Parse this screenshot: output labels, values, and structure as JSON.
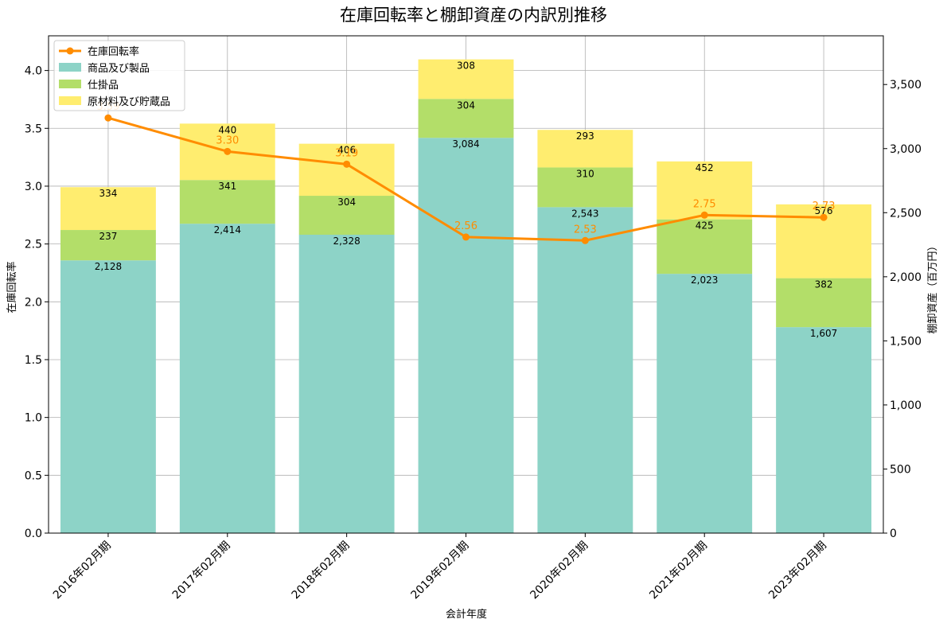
{
  "chart_data": {
    "type": "bar",
    "title": "在庫回転率と棚卸資産の内訳別推移",
    "xlabel": "会計年度",
    "ylabel_left": "在庫回転率",
    "ylabel_right": "棚卸資産（百万円）",
    "categories": [
      "2016年02月期",
      "2017年02月期",
      "2018年02月期",
      "2019年02月期",
      "2020年02月期",
      "2021年02月期",
      "2023年02月期"
    ],
    "stacked_series": [
      {
        "name": "商品及び製品",
        "color": "#8dd3c7",
        "values": [
          2128,
          2414,
          2328,
          3084,
          2543,
          2023,
          1607
        ],
        "labels": [
          "2,128",
          "2,414",
          "2,328",
          "3,084",
          "2,543",
          "2,023",
          "1,607"
        ]
      },
      {
        "name": "仕掛品",
        "color": "#b3de69",
        "values": [
          237,
          341,
          304,
          304,
          310,
          425,
          382
        ],
        "labels": [
          "237",
          "341",
          "304",
          "304",
          "310",
          "425",
          "382"
        ]
      },
      {
        "name": "原材料及び貯蔵品",
        "color": "#ffed6f",
        "values": [
          334,
          440,
          406,
          308,
          293,
          452,
          576
        ],
        "labels": [
          "334",
          "440",
          "406",
          "308",
          "293",
          "452",
          "576"
        ]
      }
    ],
    "line_series": {
      "name": "在庫回転率",
      "color": "#ff8c00",
      "values": [
        3.59,
        3.3,
        3.19,
        2.56,
        2.53,
        2.75,
        2.73
      ],
      "labels": [
        "3.59",
        "3.30",
        "3.19",
        "2.56",
        "2.53",
        "2.75",
        "2.73"
      ]
    },
    "ylim_left": [
      0,
      4.3
    ],
    "yticks_left": [
      "0.0",
      "0.5",
      "1.0",
      "1.5",
      "2.0",
      "2.5",
      "3.0",
      "3.5",
      "4.0"
    ],
    "yticks_left_values": [
      0,
      0.5,
      1.0,
      1.5,
      2.0,
      2.5,
      3.0,
      3.5,
      4.0
    ],
    "ylim_right": [
      0,
      3880
    ],
    "yticks_right": [
      "0",
      "500",
      "1,000",
      "1,500",
      "2,000",
      "2,500",
      "3,000",
      "3,500"
    ],
    "yticks_right_values": [
      0,
      500,
      1000,
      1500,
      2000,
      2500,
      3000,
      3500
    ],
    "grid": true,
    "legend_position": "top-left"
  }
}
